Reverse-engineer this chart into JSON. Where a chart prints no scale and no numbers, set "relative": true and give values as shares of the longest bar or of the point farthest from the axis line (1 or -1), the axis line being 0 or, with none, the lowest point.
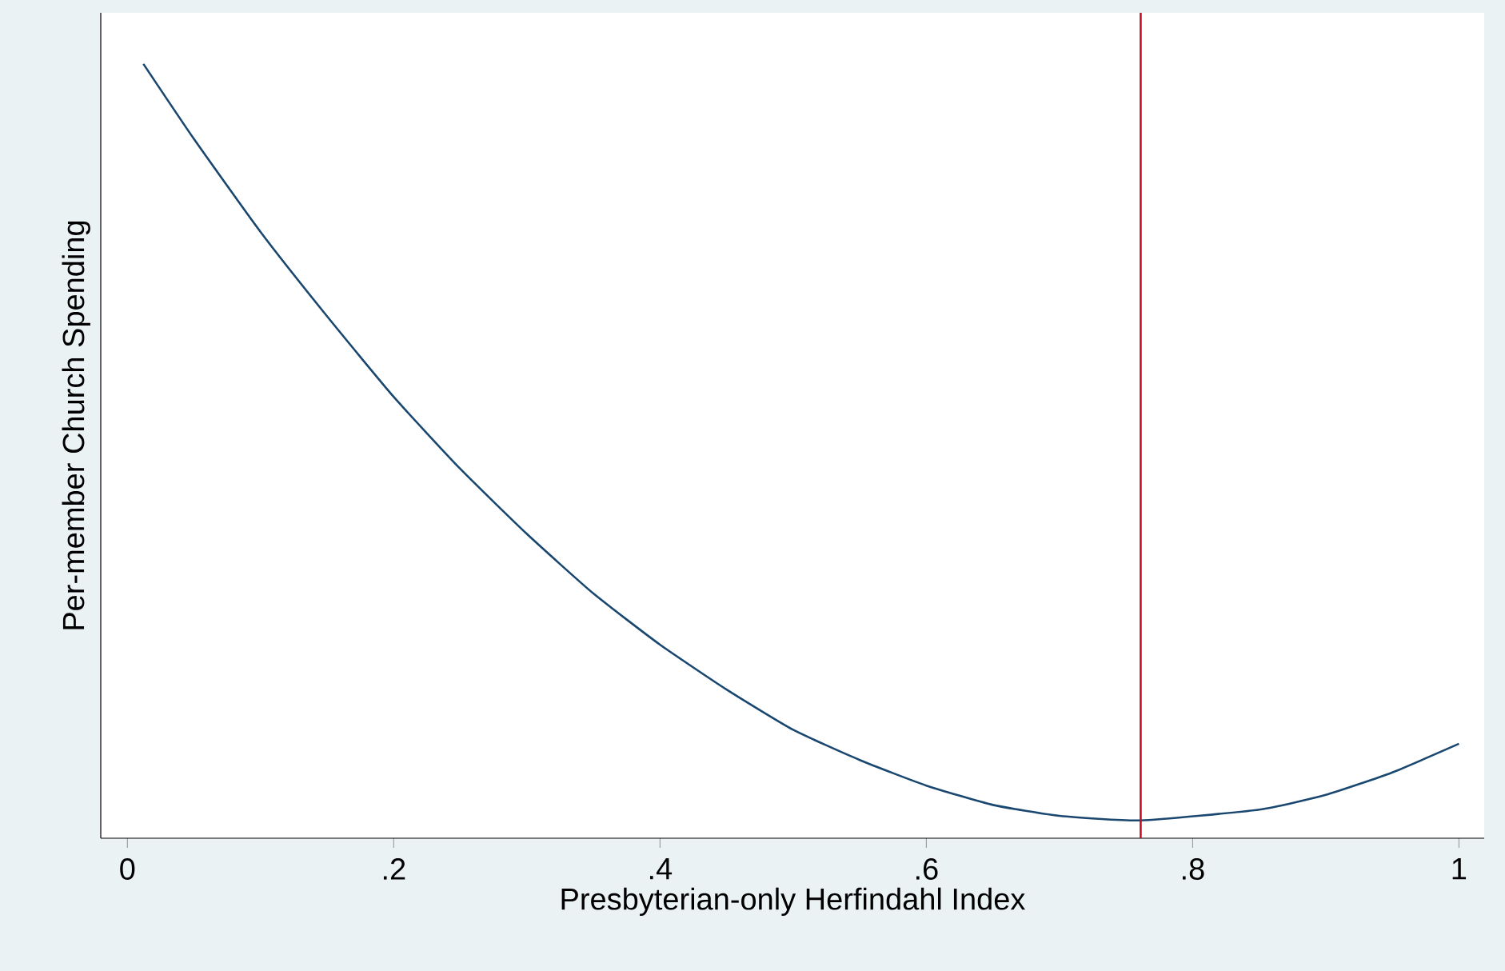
{
  "chart_data": {
    "type": "line",
    "xlabel": "Presbyterian-only Herfindahl Index",
    "ylabel": "Per-member Church Spending",
    "relative": true,
    "x": [
      0.012,
      0.05,
      0.1,
      0.15,
      0.2,
      0.25,
      0.3,
      0.35,
      0.4,
      0.45,
      0.5,
      0.55,
      0.6,
      0.65,
      0.7,
      0.761,
      0.85,
      0.9,
      0.95,
      1.0
    ],
    "series": [
      {
        "color": "#1a476f",
        "values": [
          1.0,
          0.903,
          0.783,
          0.674,
          0.57,
          0.477,
          0.393,
          0.316,
          0.25,
          0.192,
          0.14,
          0.101,
          0.068,
          0.043,
          0.029,
          0.023,
          0.037,
          0.056,
          0.085,
          0.122
        ]
      }
    ],
    "xlim": [
      -0.02,
      1.019
    ],
    "xticks": [
      0,
      {
        "value": 0.2,
        "label": ".2"
      },
      {
        "value": 0.4,
        "label": ".4"
      },
      {
        "value": 0.6,
        "label": ".6"
      },
      {
        "value": 0.8,
        "label": ".8"
      },
      1
    ],
    "ref_lines": [
      {
        "axis": "x",
        "value": 0.761,
        "color": "#c0102a"
      }
    ],
    "grid": false,
    "marker": "none",
    "line_style": "solid"
  }
}
